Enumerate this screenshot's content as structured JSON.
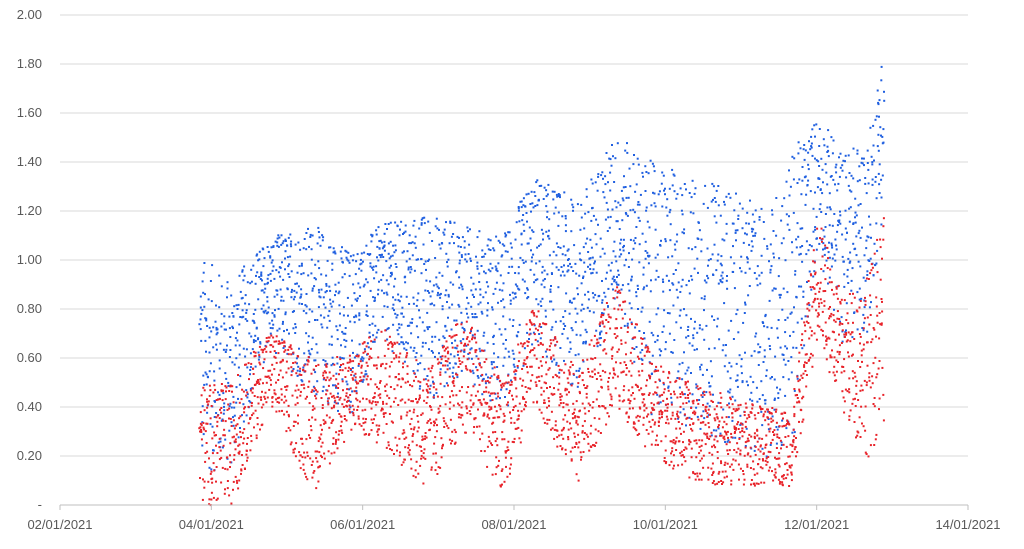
{
  "chart_data": {
    "type": "scatter",
    "title": "",
    "xlabel": "",
    "ylabel": "",
    "xlim": [
      "02/01/2021",
      "14/01/2021"
    ],
    "ylim": [
      0,
      2.0
    ],
    "x_tick_labels": [
      "02/01/2021",
      "04/01/2021",
      "06/01/2021",
      "08/01/2021",
      "10/01/2021",
      "12/01/2021",
      "14/01/2021"
    ],
    "y_tick_labels": [
      "-",
      "0.20",
      "0.40",
      "0.60",
      "0.80",
      "1.00",
      "1.20",
      "1.40",
      "1.60",
      "1.80",
      "2.00"
    ],
    "grid": true,
    "legend": "none",
    "colors": {
      "series_upper": "#1f5fe0",
      "series_lower": "#e8232a"
    },
    "series": [
      {
        "color": "#1f5fe0",
        "x": [
          "03/01/2021 20:00",
          "04/01/2021 06:00",
          "04/01/2021 18:00",
          "05/01/2021 08:00",
          "05/01/2021 20:00",
          "06/01/2021 06:00",
          "06/01/2021 20:00",
          "07/01/2021 08:00",
          "07/01/2021 20:00",
          "08/01/2021 06:00",
          "08/01/2021 20:00",
          "09/01/2021 08:00",
          "09/01/2021 20:00",
          "10/01/2021 08:00",
          "10/01/2021 20:00",
          "11/01/2021 08:00",
          "11/01/2021 16:00",
          "12/01/2021 00:00",
          "12/01/2021 08:00",
          "12/01/2021 16:00",
          "12/01/2021 21:00"
        ],
        "min": [
          0.12,
          0.15,
          0.65,
          0.45,
          0.35,
          0.7,
          0.4,
          0.55,
          0.35,
          0.65,
          0.45,
          0.8,
          0.35,
          0.3,
          0.25,
          0.2,
          0.2,
          1.05,
          0.65,
          0.7,
          1.25
        ],
        "max": [
          1.03,
          0.92,
          1.1,
          1.15,
          1.05,
          1.15,
          1.2,
          1.15,
          1.1,
          1.35,
          1.25,
          1.52,
          1.4,
          1.35,
          1.3,
          1.2,
          1.45,
          1.6,
          1.45,
          1.5,
          1.89
        ]
      },
      {
        "color": "#e8232a",
        "x": [
          "03/01/2021 20:00",
          "04/01/2021 06:00",
          "04/01/2021 18:00",
          "05/01/2021 08:00",
          "05/01/2021 20:00",
          "06/01/2021 06:00",
          "06/01/2021 20:00",
          "07/01/2021 08:00",
          "07/01/2021 20:00",
          "08/01/2021 06:00",
          "08/01/2021 20:00",
          "09/01/2021 08:00",
          "09/01/2021 20:00",
          "10/01/2021 08:00",
          "10/01/2021 20:00",
          "11/01/2021 08:00",
          "11/01/2021 16:00",
          "12/01/2021 00:00",
          "12/01/2021 08:00",
          "12/01/2021 16:00",
          "12/01/2021 21:00"
        ],
        "min": [
          0.0,
          0.0,
          0.4,
          0.05,
          0.3,
          0.25,
          0.05,
          0.3,
          0.05,
          0.4,
          0.1,
          0.4,
          0.2,
          0.1,
          0.08,
          0.08,
          0.08,
          0.7,
          0.35,
          0.2,
          0.3
        ],
        "max": [
          0.5,
          0.5,
          0.72,
          0.6,
          0.62,
          0.75,
          0.55,
          0.8,
          0.5,
          0.82,
          0.55,
          0.92,
          0.6,
          0.5,
          0.45,
          0.4,
          0.4,
          1.2,
          0.85,
          0.95,
          1.18
        ]
      }
    ]
  }
}
